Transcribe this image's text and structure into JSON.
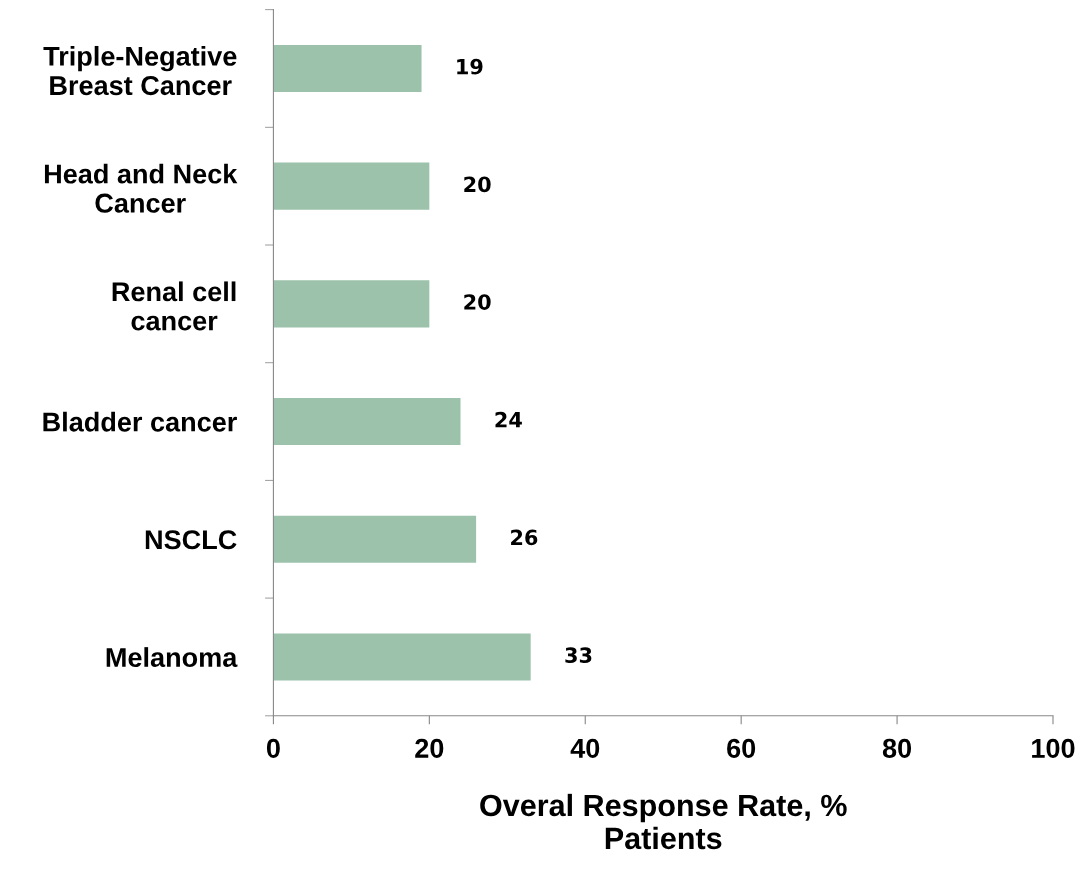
{
  "chart_data": {
    "type": "bar",
    "orientation": "horizontal",
    "categories": [
      "Triple-Negative\nBreast Cancer",
      "Head and Neck\nCancer",
      "Renal cell\ncancer",
      "Bladder cancer",
      "NSCLC",
      "Melanoma"
    ],
    "values": [
      19,
      20,
      20,
      24,
      26,
      33
    ],
    "color": "#9cc2ab",
    "data_labels": true,
    "xlim": [
      0,
      100
    ],
    "xticks": [
      0,
      20,
      40,
      60,
      80,
      100
    ],
    "xlabel": "Overal Response Rate, %\nPatients",
    "grid": false,
    "legend": false
  }
}
